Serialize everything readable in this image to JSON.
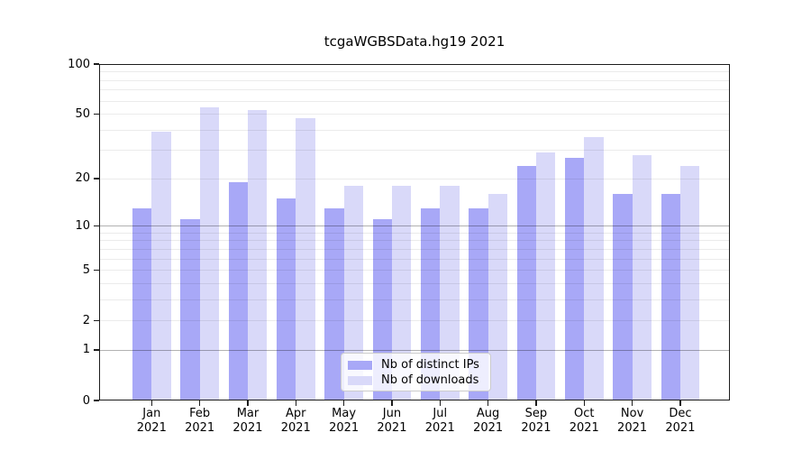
{
  "title": "tcgaWGBSData.hg19 2021",
  "legend": {
    "items": [
      {
        "label": "Nb of distinct IPs"
      },
      {
        "label": "Nb of downloads"
      }
    ]
  },
  "chart_data": {
    "type": "bar",
    "title": "tcgaWGBSData.hg19 2021",
    "categories": [
      "Jan 2021",
      "Feb 2021",
      "Mar 2021",
      "Apr 2021",
      "May 2021",
      "Jun 2021",
      "Jul 2021",
      "Aug 2021",
      "Sep 2021",
      "Oct 2021",
      "Nov 2021",
      "Dec 2021"
    ],
    "month_labels": [
      "Jan",
      "Feb",
      "Mar",
      "Apr",
      "May",
      "Jun",
      "Jul",
      "Aug",
      "Sep",
      "Oct",
      "Nov",
      "Dec"
    ],
    "year_label": "2021",
    "series": [
      {
        "name": "Nb of distinct IPs",
        "color": "#a8a8f7",
        "values": [
          13,
          11,
          19,
          15,
          13,
          11,
          13,
          13,
          24,
          27,
          16,
          16
        ]
      },
      {
        "name": "Nb of downloads",
        "color": "#d9d9f9",
        "values": [
          39,
          55,
          53,
          47,
          18,
          18,
          18,
          16,
          29,
          36,
          28,
          24
        ]
      }
    ],
    "xlabel": "",
    "ylabel": "",
    "yscale": "log1p",
    "ylim": [
      0,
      100
    ],
    "y_tick_labels": [
      100,
      50,
      20,
      10,
      5,
      2,
      1,
      0
    ],
    "grid_major_values": [
      1,
      10
    ],
    "grid_minor_values": [
      2,
      3,
      4,
      5,
      6,
      7,
      8,
      9,
      20,
      30,
      40,
      50,
      60,
      70,
      80,
      90
    ],
    "grid": "both",
    "grid_major_color": "rgba(0,0,0,0.30)",
    "grid_minor_color": "rgba(0,0,0,0.08)",
    "legend_position": "lower center (inside axes)"
  }
}
